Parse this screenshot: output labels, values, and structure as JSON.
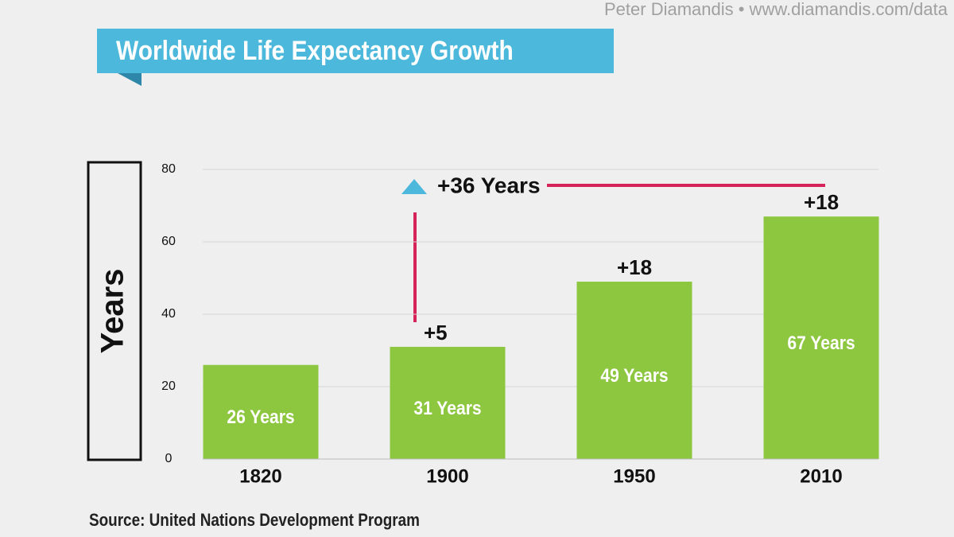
{
  "chart_data": {
    "type": "bar",
    "title": "Worldwide Life Expectancy Growth",
    "credit": "Peter Diamandis  •  www.diamandis.com/data",
    "y_label": "Years",
    "source": "Source: United Nations Development Program",
    "categories": [
      "1820",
      "1900",
      "1950",
      "2010"
    ],
    "values": [
      26,
      31,
      49,
      67
    ],
    "value_labels": [
      "26 Years",
      "31 Years",
      "49 Years",
      "67 Years"
    ],
    "change_labels": [
      null,
      "+5",
      "+18",
      "+18"
    ],
    "total_change": "+36 Years",
    "color": "#8dc63f",
    "ylim": [
      0,
      80
    ],
    "yticks": [
      0,
      20,
      40,
      60,
      80
    ],
    "grid": true
  }
}
